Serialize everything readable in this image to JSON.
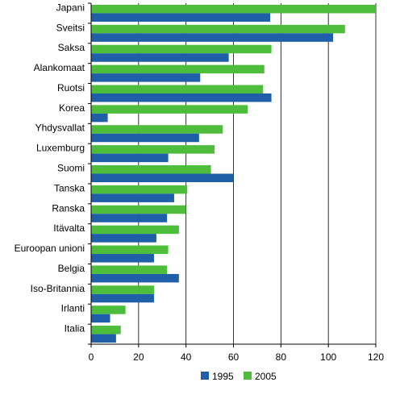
{
  "chart_data": {
    "type": "bar",
    "orientation": "horizontal",
    "categories": [
      "Japani",
      "Sveitsi",
      "Saksa",
      "Alankomaat",
      "Ruotsi",
      "Korea",
      "Yhdysvallat",
      "Luxemburg",
      "Suomi",
      "Tanska",
      "Ranska",
      "Itävalta",
      "Euroopan unioni",
      "Belgia",
      "Iso-Britannia",
      "Irlanti",
      "Italia"
    ],
    "series": [
      {
        "name": "1995",
        "color": "#1f5fa8",
        "values": [
          75.5,
          102,
          58,
          46,
          76,
          7,
          45.5,
          32.5,
          60,
          35,
          32,
          27.5,
          26.5,
          37,
          26.5,
          8,
          10.5
        ]
      },
      {
        "name": "2005",
        "color": "#4ebd3c",
        "values": [
          120,
          107,
          76,
          73,
          72.5,
          66,
          55.5,
          52,
          50.5,
          40.5,
          40,
          37,
          32.5,
          32,
          26.5,
          14.5,
          12.5
        ]
      }
    ],
    "xlim": [
      0,
      120
    ],
    "xticks": [
      "0",
      "20",
      "40",
      "60",
      "80",
      "100",
      "120"
    ],
    "grid": true,
    "legend_position": "bottom-right",
    "title": "",
    "xlabel": "",
    "ylabel": ""
  }
}
